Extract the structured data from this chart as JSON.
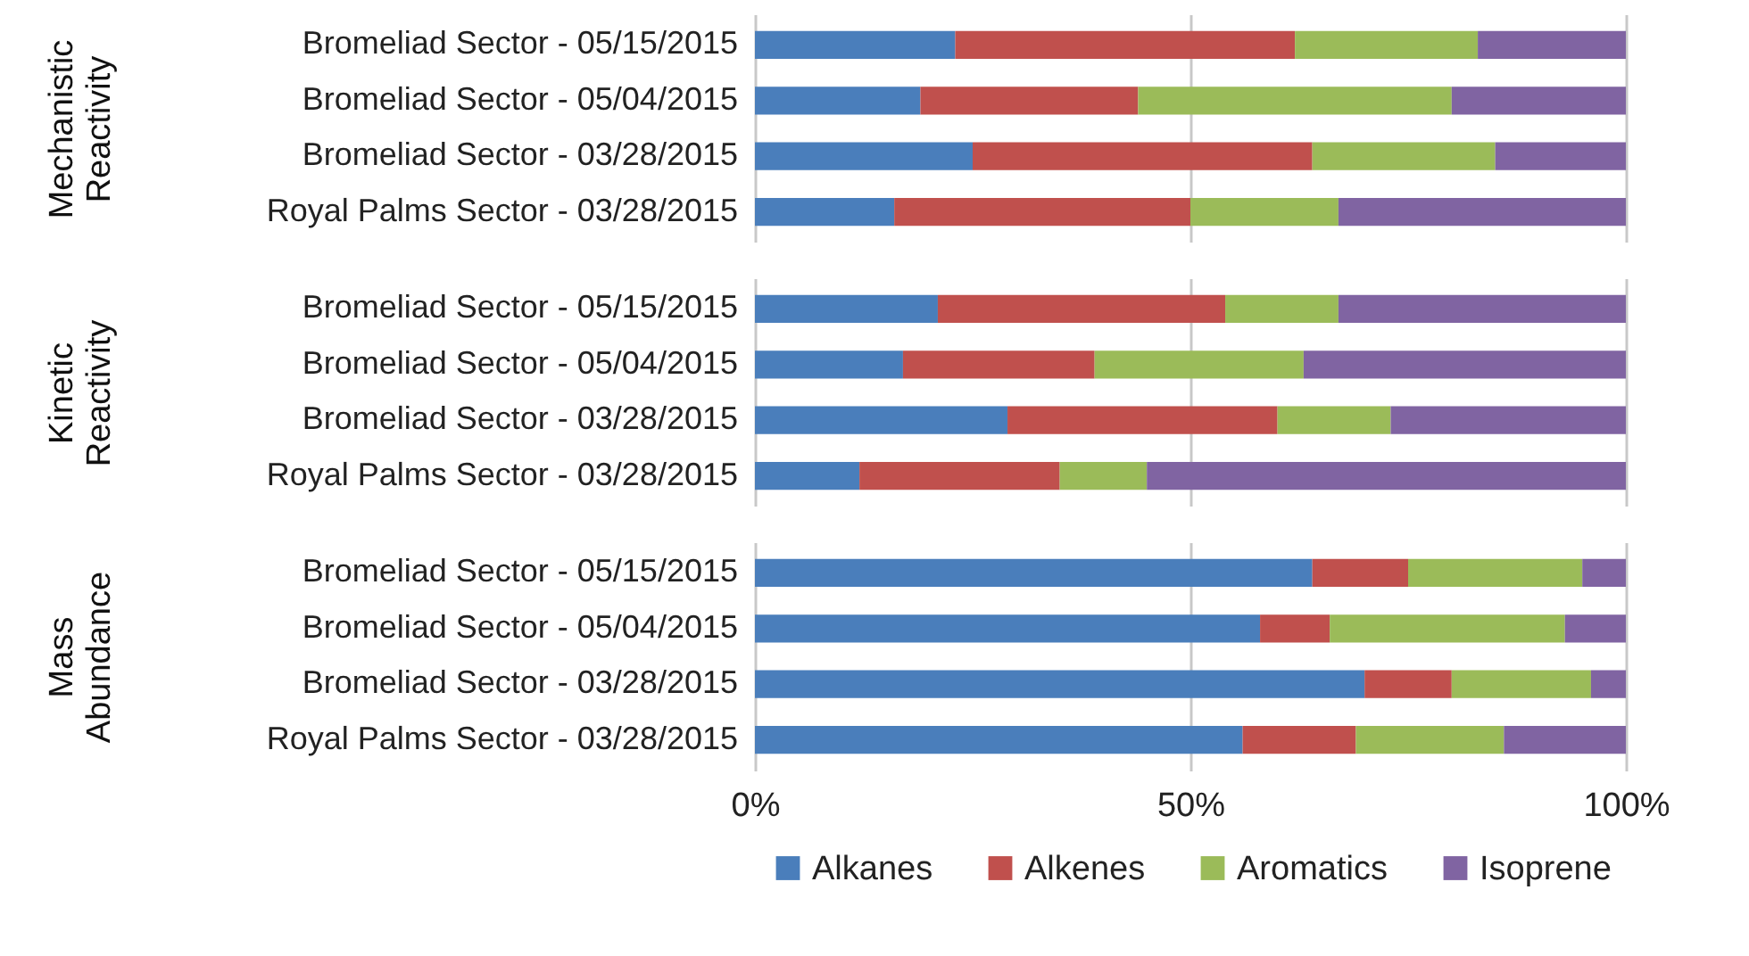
{
  "chart_data": [
    {
      "type": "bar",
      "orientation": "horizontal",
      "stacked": true,
      "ylabel": "Mechanistic Reactivity",
      "categories": [
        "Bromeliad Sector - 05/15/2015",
        "Bromeliad Sector - 05/04/2015",
        "Bromeliad Sector - 03/28/2015",
        "Royal Palms Sector - 03/28/2015"
      ],
      "series": [
        {
          "color": "#4a7ebb",
          "values": [
            23,
            19,
            25,
            16
          ]
        },
        {
          "color": "#c0504d",
          "values": [
            39,
            25,
            39,
            34
          ]
        },
        {
          "color": "#9bbb59",
          "values": [
            21,
            36,
            21,
            17
          ]
        },
        {
          "color": "#8064a2",
          "values": [
            17,
            20,
            15,
            33
          ]
        }
      ],
      "xlim": [
        0,
        100
      ],
      "xticks": [
        0,
        50,
        100
      ],
      "grid": "x",
      "legend": false,
      "tick_labels": "y"
    },
    {
      "type": "bar",
      "orientation": "horizontal",
      "stacked": true,
      "ylabel": "Kinetic Reactivity",
      "categories": [
        "Bromeliad Sector - 05/15/2015",
        "Bromeliad Sector - 05/04/2015",
        "Bromeliad Sector - 03/28/2015",
        "Royal Palms Sector - 03/28/2015"
      ],
      "series": [
        {
          "color": "#4a7ebb",
          "values": [
            21,
            17,
            29,
            12
          ]
        },
        {
          "color": "#c0504d",
          "values": [
            33,
            22,
            31,
            23
          ]
        },
        {
          "color": "#9bbb59",
          "values": [
            13,
            24,
            13,
            10
          ]
        },
        {
          "color": "#8064a2",
          "values": [
            33,
            37,
            27,
            55
          ]
        }
      ],
      "xlim": [
        0,
        100
      ],
      "xticks": [
        0,
        50,
        100
      ],
      "grid": "x",
      "legend": false,
      "tick_labels": "y"
    },
    {
      "type": "bar",
      "orientation": "horizontal",
      "stacked": true,
      "ylabel": "Mass Abundance",
      "categories": [
        "Bromeliad Sector - 05/15/2015",
        "Bromeliad Sector - 05/04/2015",
        "Bromeliad Sector - 03/28/2015",
        "Royal Palms Sector - 03/28/2015"
      ],
      "series": [
        {
          "name": "Alkanes",
          "color": "#4a7ebb",
          "values": [
            64,
            58,
            70,
            56
          ]
        },
        {
          "name": "Alkenes",
          "color": "#c0504d",
          "values": [
            11,
            8,
            10,
            13
          ]
        },
        {
          "name": "Aromatics",
          "color": "#9bbb59",
          "values": [
            20,
            27,
            16,
            17
          ]
        },
        {
          "name": "Isoprene",
          "color": "#8064a2",
          "values": [
            5,
            7,
            4,
            14
          ]
        }
      ],
      "xlim": [
        0,
        100
      ],
      "xticks": [
        {
          "value": 0,
          "label": "0%"
        },
        {
          "value": 50,
          "label": "50%"
        },
        {
          "value": 100,
          "label": "100%"
        }
      ],
      "grid": "x",
      "legend": "bottom"
    }
  ]
}
